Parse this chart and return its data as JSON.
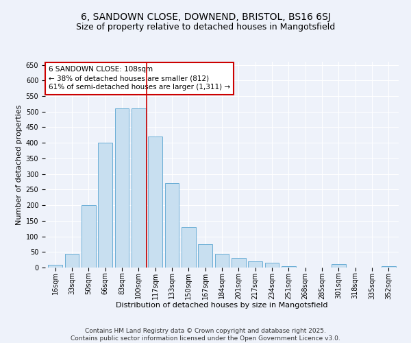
{
  "title_line1": "6, SANDOWN CLOSE, DOWNEND, BRISTOL, BS16 6SJ",
  "title_line2": "Size of property relative to detached houses in Mangotsfield",
  "xlabel": "Distribution of detached houses by size in Mangotsfield",
  "ylabel": "Number of detached properties",
  "categories": [
    "16sqm",
    "33sqm",
    "50sqm",
    "66sqm",
    "83sqm",
    "100sqm",
    "117sqm",
    "133sqm",
    "150sqm",
    "167sqm",
    "184sqm",
    "201sqm",
    "217sqm",
    "234sqm",
    "251sqm",
    "268sqm",
    "285sqm",
    "301sqm",
    "318sqm",
    "335sqm",
    "352sqm"
  ],
  "values": [
    8,
    45,
    200,
    400,
    510,
    510,
    420,
    270,
    130,
    75,
    45,
    30,
    20,
    15,
    5,
    0,
    0,
    10,
    0,
    0,
    5
  ],
  "bar_color": "#c8dff0",
  "bar_edge_color": "#6aaed6",
  "vline_color": "#cc0000",
  "annotation_text": "6 SANDOWN CLOSE: 108sqm\n← 38% of detached houses are smaller (812)\n61% of semi-detached houses are larger (1,311) →",
  "annotation_box_color": "#ffffff",
  "annotation_box_edge": "#cc0000",
  "ylim": [
    0,
    660
  ],
  "yticks": [
    0,
    50,
    100,
    150,
    200,
    250,
    300,
    350,
    400,
    450,
    500,
    550,
    600,
    650
  ],
  "footer_text": "Contains HM Land Registry data © Crown copyright and database right 2025.\nContains public sector information licensed under the Open Government Licence v3.0.",
  "background_color": "#eef2fa",
  "grid_color": "#ffffff",
  "title_fontsize": 10,
  "subtitle_fontsize": 9,
  "axis_label_fontsize": 8,
  "tick_fontsize": 7,
  "annotation_fontsize": 7.5,
  "footer_fontsize": 6.5
}
